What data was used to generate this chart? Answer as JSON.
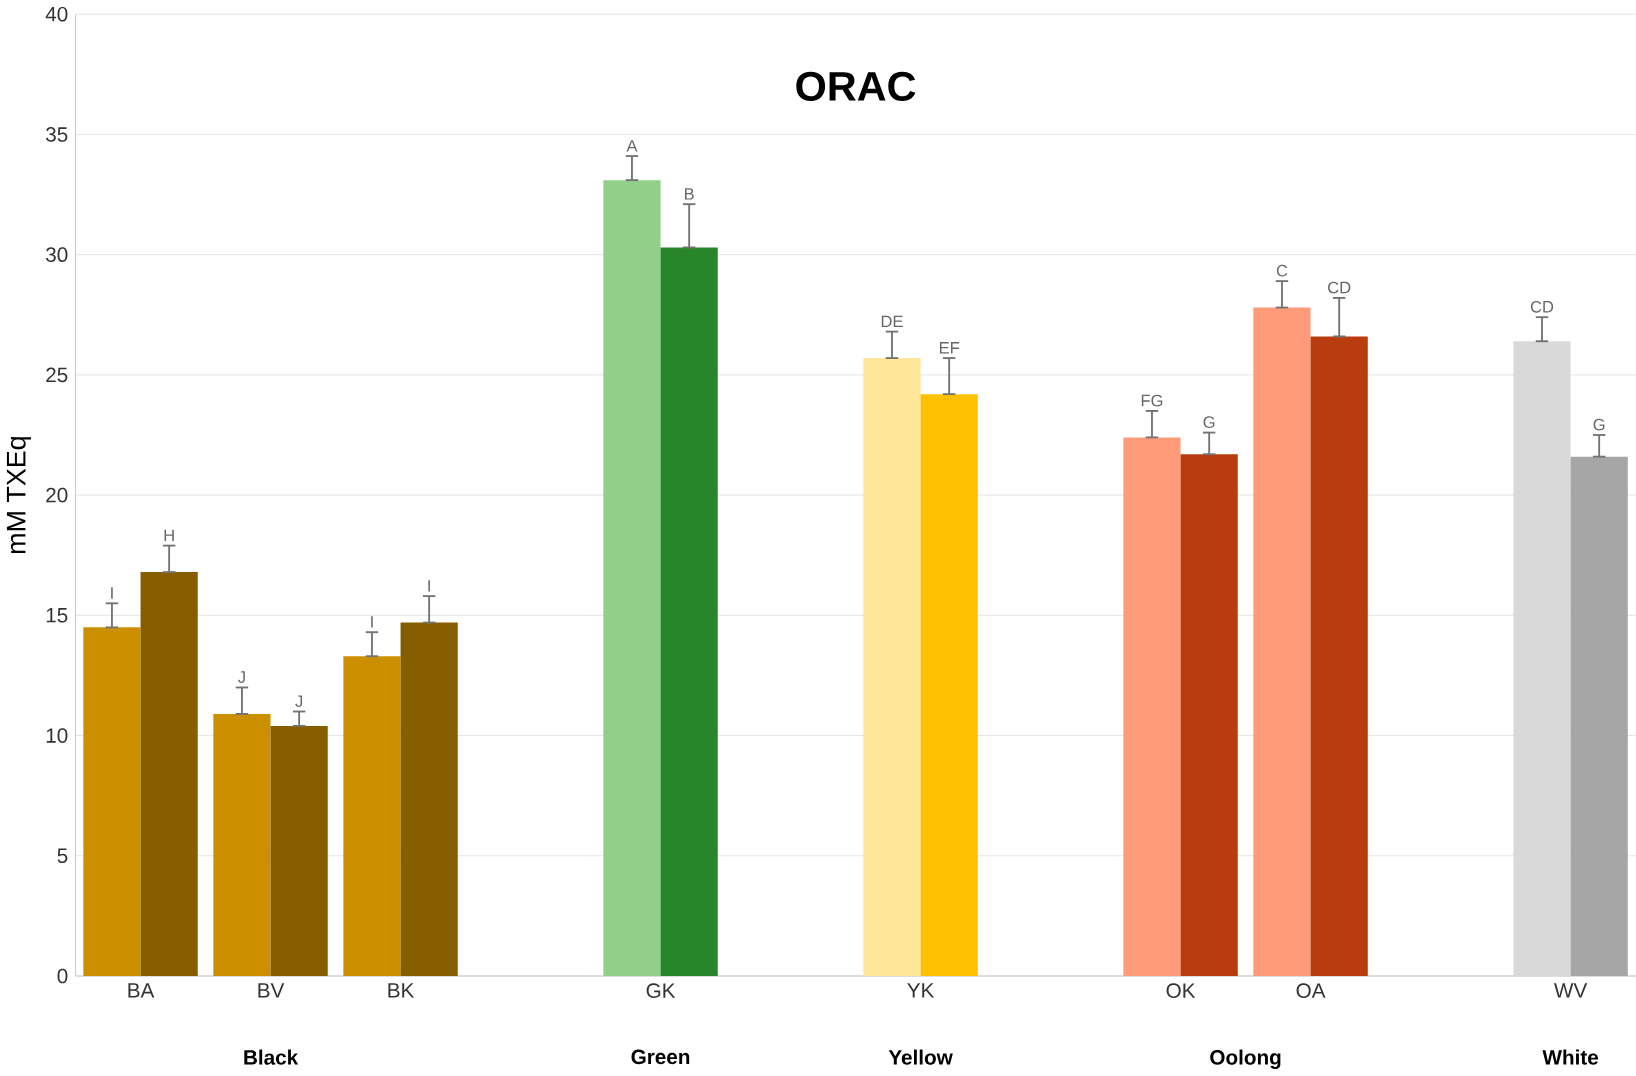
{
  "chart_data": {
    "type": "bar",
    "title": "ORAC",
    "ylabel": "mM TXEq",
    "categories": [
      "BA",
      "BV",
      "BK",
      null,
      "GK",
      null,
      "YK",
      null,
      "OK",
      "OA",
      null,
      "WV"
    ],
    "series": [
      {
        "colors": [
          "#cc8f00",
          "#cc8f00",
          "#cc8f00",
          null,
          "#92d08a",
          null,
          "#ffe699",
          null,
          "#ff9b78",
          "#ff9b78",
          null,
          "#d9d9d9"
        ],
        "values": [
          14.5,
          10.9,
          13.3,
          null,
          33.1,
          null,
          25.7,
          null,
          22.4,
          27.8,
          null,
          26.4
        ],
        "errors": [
          [
            14.5,
            15.5
          ],
          [
            10.9,
            12.0
          ],
          [
            13.3,
            14.3
          ],
          null,
          [
            33.1,
            34.1
          ],
          null,
          [
            25.7,
            26.8
          ],
          null,
          [
            22.4,
            23.5
          ],
          [
            27.8,
            28.9
          ],
          null,
          [
            26.4,
            27.4
          ]
        ],
        "value_labels": [
          "I",
          "J",
          "I",
          null,
          "A",
          null,
          "DE",
          null,
          "FG",
          "C",
          null,
          "CD"
        ]
      },
      {
        "colors": [
          "#865e00",
          "#865e00",
          "#865e00",
          null,
          "#27852a",
          null,
          "#ffc000",
          null,
          "#b83c0e",
          "#b83c0e",
          null,
          "#a6a6a6"
        ],
        "values": [
          16.8,
          10.4,
          14.7,
          null,
          30.3,
          null,
          24.2,
          null,
          21.7,
          26.6,
          null,
          21.6
        ],
        "errors": [
          [
            16.8,
            17.9
          ],
          [
            10.4,
            11.0
          ],
          [
            14.7,
            15.8
          ],
          null,
          [
            30.3,
            32.1
          ],
          null,
          [
            24.2,
            25.7
          ],
          null,
          [
            21.7,
            22.6
          ],
          [
            26.6,
            28.2
          ],
          null,
          [
            21.6,
            22.5
          ]
        ],
        "value_labels": [
          "H",
          "J",
          "I",
          null,
          "B",
          null,
          "EF",
          null,
          "G",
          "CD",
          null,
          "G"
        ]
      }
    ],
    "annotations": [
      "Black",
      "Green",
      "Yellow",
      "Oolong",
      "White"
    ],
    "ylim": [
      0,
      40
    ],
    "yticks": [
      0,
      5,
      10,
      15,
      20,
      25,
      30,
      35,
      40
    ],
    "grid": "y"
  }
}
